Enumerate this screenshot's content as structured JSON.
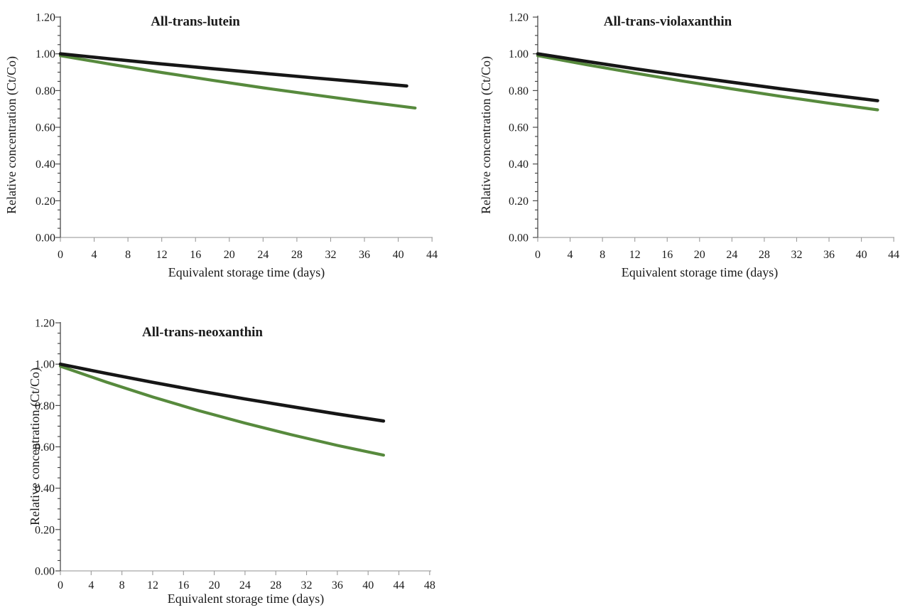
{
  "figure": {
    "description": "Relative concentration decay of three carotenoids during equivalent storage time",
    "series_colors": {
      "black": "#161616",
      "green": "#578a3d"
    }
  },
  "chart_data": [
    {
      "type": "line",
      "title": "All-trans-lutein",
      "xlabel": "Equivalent storage time (days)",
      "ylabel": "Relative concentration (Ct/Co)",
      "xlim": [
        0,
        44
      ],
      "ylim": [
        0,
        1.2
      ],
      "x_ticks": [
        0,
        4,
        8,
        12,
        16,
        20,
        24,
        28,
        32,
        36,
        40,
        44
      ],
      "y_ticks": [
        "0.00",
        "0.20",
        "0.40",
        "0.60",
        "0.80",
        "1.00",
        "1.20"
      ],
      "y_minor_step": 0.05,
      "grid": false,
      "legend": "none",
      "series": [
        {
          "name": "black",
          "color": "#161616",
          "points": [
            [
              0,
              1.0
            ],
            [
              6,
              0.972
            ],
            [
              12,
              0.945
            ],
            [
              18,
              0.919
            ],
            [
              24,
              0.894
            ],
            [
              30,
              0.869
            ],
            [
              36,
              0.845
            ],
            [
              41,
              0.825
            ]
          ]
        },
        {
          "name": "green",
          "color": "#578a3d",
          "points": [
            [
              0,
              0.99
            ],
            [
              6,
              0.943
            ],
            [
              12,
              0.898
            ],
            [
              18,
              0.856
            ],
            [
              24,
              0.815
            ],
            [
              30,
              0.777
            ],
            [
              36,
              0.74
            ],
            [
              42,
              0.705
            ]
          ]
        }
      ]
    },
    {
      "type": "line",
      "title": "All-trans-violaxanthin",
      "xlabel": "Equivalent storage time (days)",
      "ylabel": "Relative concentration (Ct/Co)",
      "xlim": [
        0,
        44
      ],
      "ylim": [
        0,
        1.2
      ],
      "x_ticks": [
        0,
        4,
        8,
        12,
        16,
        20,
        24,
        28,
        32,
        36,
        40,
        44
      ],
      "y_ticks": [
        "0.00",
        "0.20",
        "0.40",
        "0.60",
        "0.80",
        "1.00",
        "1.20"
      ],
      "y_minor_step": 0.05,
      "grid": false,
      "legend": "none",
      "series": [
        {
          "name": "black",
          "color": "#161616",
          "points": [
            [
              0,
              1.0
            ],
            [
              6,
              0.959
            ],
            [
              12,
              0.919
            ],
            [
              18,
              0.881
            ],
            [
              24,
              0.845
            ],
            [
              30,
              0.81
            ],
            [
              36,
              0.777
            ],
            [
              42,
              0.745
            ]
          ]
        },
        {
          "name": "green",
          "color": "#578a3d",
          "points": [
            [
              0,
              0.99
            ],
            [
              6,
              0.941
            ],
            [
              12,
              0.895
            ],
            [
              18,
              0.851
            ],
            [
              24,
              0.809
            ],
            [
              30,
              0.769
            ],
            [
              36,
              0.731
            ],
            [
              42,
              0.695
            ]
          ]
        }
      ]
    },
    {
      "type": "line",
      "title": "All-trans-neoxanthin",
      "xlabel": "Equivalent storage time (days)",
      "ylabel": "Relative concentration (Ct/Co)",
      "xlim": [
        0,
        48
      ],
      "ylim": [
        0,
        1.2
      ],
      "x_ticks": [
        0,
        4,
        8,
        12,
        16,
        20,
        24,
        28,
        32,
        36,
        40,
        44,
        48
      ],
      "y_ticks": [
        "0.00",
        "0.20",
        "0.40",
        "0.60",
        "0.80",
        "1.00",
        "1.20"
      ],
      "y_minor_step": 0.05,
      "grid": false,
      "legend": "none",
      "series": [
        {
          "name": "black",
          "color": "#161616",
          "points": [
            [
              0,
              1.0
            ],
            [
              6,
              0.955
            ],
            [
              12,
              0.912
            ],
            [
              18,
              0.871
            ],
            [
              24,
              0.832
            ],
            [
              30,
              0.795
            ],
            [
              36,
              0.759
            ],
            [
              42,
              0.725
            ]
          ]
        },
        {
          "name": "green",
          "color": "#578a3d",
          "points": [
            [
              0,
              0.99
            ],
            [
              6,
              0.913
            ],
            [
              12,
              0.841
            ],
            [
              18,
              0.775
            ],
            [
              24,
              0.715
            ],
            [
              30,
              0.659
            ],
            [
              36,
              0.607
            ],
            [
              42,
              0.56
            ]
          ]
        }
      ]
    }
  ]
}
